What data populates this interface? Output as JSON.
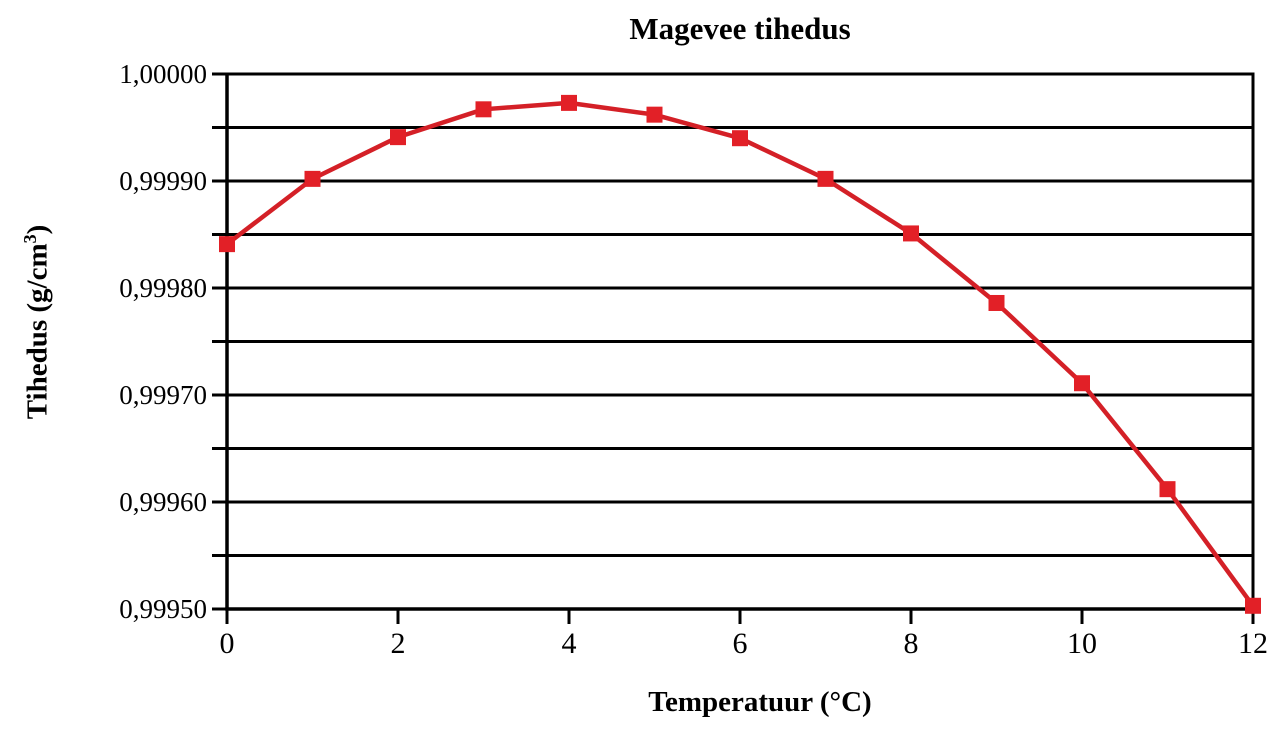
{
  "title": "Magevee tihedus",
  "axes": {
    "x_title": "Temperatuur (°C)",
    "y_title_prefix": "Tihedus (g/cm",
    "y_title_sup": "3",
    "y_title_suffix": ")"
  },
  "chart_data": {
    "type": "line",
    "title": "Magevee tihedus",
    "xlabel": "Temperatuur (°C)",
    "ylabel": "Tihedus (g/cm³)",
    "series": [
      {
        "name": "Magevee tihedus",
        "x": [
          0,
          1,
          2,
          3,
          4,
          5,
          6,
          7,
          8,
          9,
          10,
          11,
          12
        ],
        "y": [
          0.999841,
          0.999902,
          0.999941,
          0.999967,
          0.999973,
          0.999962,
          0.99994,
          0.999902,
          0.999851,
          0.999786,
          0.999711,
          0.999612,
          0.999503
        ]
      }
    ],
    "xlim": [
      0,
      12
    ],
    "ylim": [
      0.9995,
      1.0
    ],
    "x_tick_values": [
      0,
      2,
      4,
      6,
      8,
      10,
      12
    ],
    "x_tick_labels": [
      "0",
      "2",
      "4",
      "6",
      "8",
      "10",
      "12"
    ],
    "y_tick_values": [
      1.0,
      0.9999,
      0.9998,
      0.9997,
      0.9996,
      0.9995
    ],
    "y_tick_labels": [
      "1,00000",
      "0,99990",
      "0,99980",
      "0,99970",
      "0,99960",
      "0,99950"
    ],
    "y_gridline_step": 5e-05,
    "grid": "horizontal-only",
    "legend": "none",
    "marker": "square",
    "line_color": "#d42027",
    "marker_color": "#e22027",
    "axis_color": "#000000"
  }
}
